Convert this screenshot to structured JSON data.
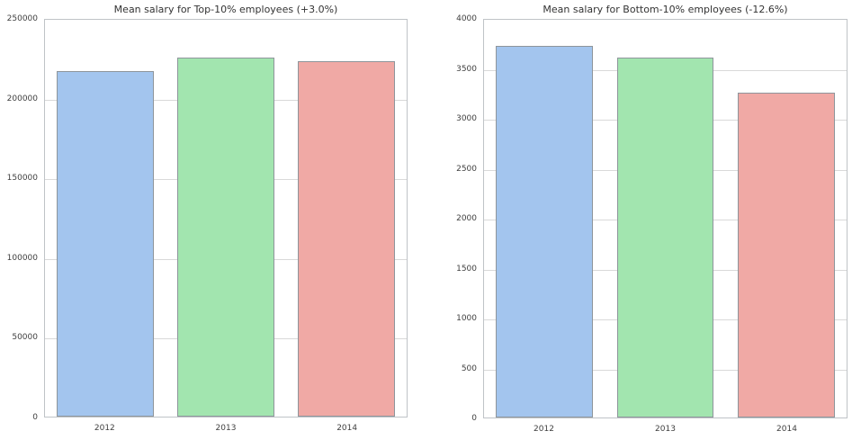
{
  "figure": {
    "background": "#ffffff"
  },
  "style": {
    "bar_fill_colors": [
      "#a3c5ee",
      "#a2e5af",
      "#f0a9a5"
    ],
    "bar_edge_color": "#8e959b",
    "grid_color": "#d9d9d9",
    "spine_color": "#bfc3c7",
    "title_color": "#333333",
    "tick_color": "#404040"
  },
  "chart_data": [
    {
      "type": "bar",
      "title": "Mean salary for Top-10% employees (+3.0%)",
      "categories": [
        "2012",
        "2013",
        "2014"
      ],
      "values": [
        216500,
        225200,
        223000
      ],
      "ylim": [
        0,
        250000
      ],
      "yticks": [
        0,
        50000,
        100000,
        150000,
        200000,
        250000
      ],
      "ytick_labels": [
        "0",
        "50000",
        "100000",
        "150000",
        "200000",
        "250000"
      ],
      "xlabel": "",
      "ylabel": "",
      "grid": "horizontal",
      "legend": "none",
      "bar_width_fraction": 0.8
    },
    {
      "type": "bar",
      "title": "Mean salary for Bottom-10% employees (-12.6%)",
      "categories": [
        "2012",
        "2013",
        "2014"
      ],
      "values": [
        3725,
        3600,
        3255
      ],
      "ylim": [
        0,
        4000
      ],
      "yticks": [
        0,
        500,
        1000,
        1500,
        2000,
        2500,
        3000,
        3500,
        4000
      ],
      "ytick_labels": [
        "0",
        "500",
        "1000",
        "1500",
        "2000",
        "2500",
        "3000",
        "3500",
        "4000"
      ],
      "xlabel": "",
      "ylabel": "",
      "grid": "horizontal",
      "legend": "none",
      "bar_width_fraction": 0.8
    }
  ]
}
